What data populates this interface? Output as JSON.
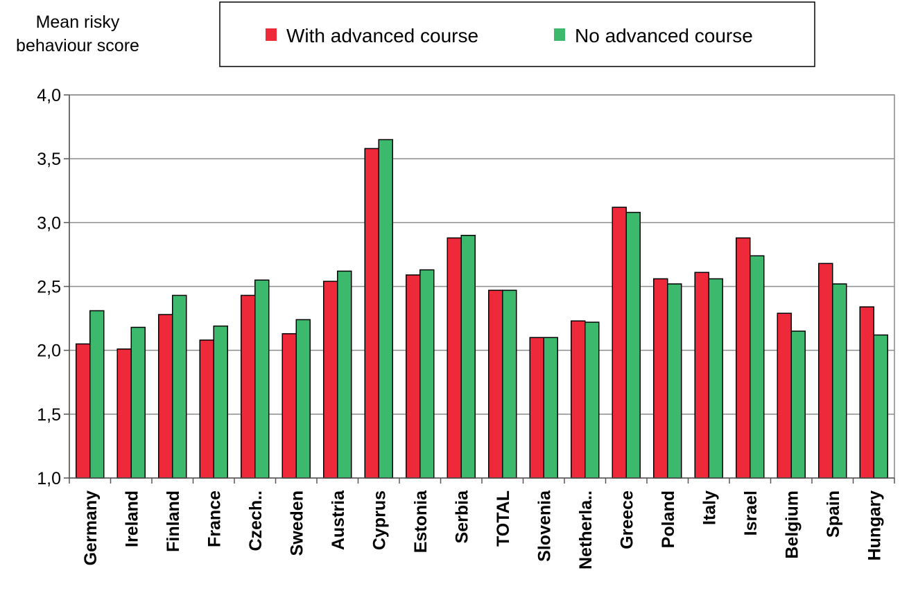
{
  "chart_data": {
    "type": "bar",
    "title": "",
    "ylabel_lines": [
      "Mean risky",
      "behaviour score"
    ],
    "xlabel": "",
    "ylim": [
      1.0,
      4.0
    ],
    "yticks": [
      1.0,
      1.5,
      2.0,
      2.5,
      3.0,
      3.5,
      4.0
    ],
    "ytick_labels": [
      "1,0",
      "1,5",
      "2,0",
      "2,5",
      "3,0",
      "3,5",
      "4,0"
    ],
    "grid": true,
    "legend_position": "top",
    "categories": [
      "Germany",
      "Ireland",
      "Finland",
      "France",
      "Czech..",
      "Sweden",
      "Austria",
      "Cyprus",
      "Estonia",
      "Serbia",
      "TOTAL",
      "Slovenia",
      "Netherla..",
      "Greece",
      "Poland",
      "Italy",
      "Israel",
      "Belgium",
      "Spain",
      "Hungary"
    ],
    "series": [
      {
        "name": "With advanced course",
        "color": "#ee2a3a",
        "values": [
          2.05,
          2.01,
          2.28,
          2.08,
          2.43,
          2.13,
          2.54,
          3.58,
          2.59,
          2.88,
          2.47,
          2.1,
          2.23,
          3.12,
          2.56,
          2.61,
          2.88,
          2.29,
          2.68,
          2.34
        ]
      },
      {
        "name": "No advanced course",
        "color": "#3cb96d",
        "values": [
          2.31,
          2.18,
          2.43,
          2.19,
          2.55,
          2.24,
          2.62,
          3.65,
          2.63,
          2.9,
          2.47,
          2.1,
          2.22,
          3.08,
          2.52,
          2.56,
          2.74,
          2.15,
          2.52,
          2.12
        ]
      }
    ]
  }
}
